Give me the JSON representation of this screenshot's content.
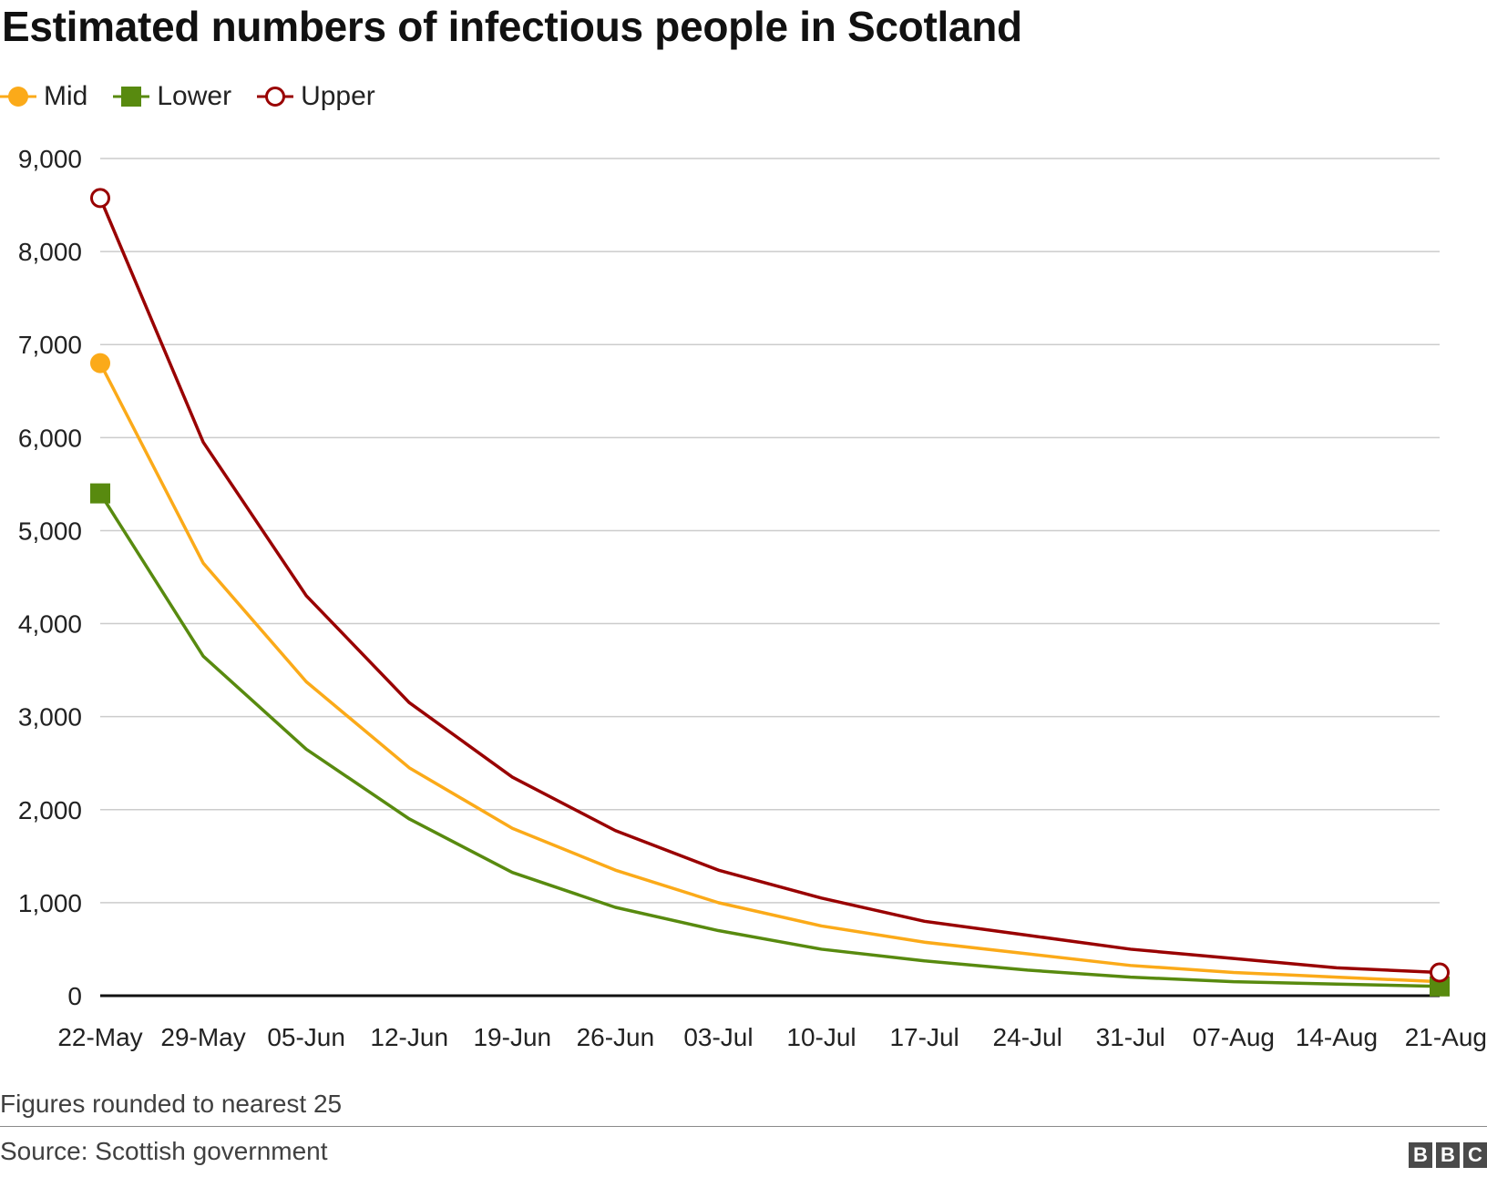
{
  "chart_data": {
    "type": "line",
    "title": "Estimated numbers of infectious people in Scotland",
    "xlabel": "",
    "ylabel": "",
    "categories": [
      "22-May",
      "29-May",
      "05-Jun",
      "12-Jun",
      "19-Jun",
      "26-Jun",
      "03-Jul",
      "10-Jul",
      "17-Jul",
      "24-Jul",
      "31-Jul",
      "07-Aug",
      "14-Aug",
      "21-Aug"
    ],
    "ylim": [
      0,
      9000
    ],
    "yticks": [
      0,
      1000,
      2000,
      3000,
      4000,
      5000,
      6000,
      7000,
      8000,
      9000
    ],
    "ytick_labels": [
      "0",
      "1,000",
      "2,000",
      "3,000",
      "4,000",
      "5,000",
      "6,000",
      "7,000",
      "8,000",
      "9,000"
    ],
    "grid": true,
    "legend": "top-left",
    "series": [
      {
        "name": "Mid",
        "color": "#fbaa19",
        "marker": "circle",
        "values": [
          6800,
          4650,
          3375,
          2450,
          1800,
          1350,
          1000,
          750,
          575,
          450,
          325,
          250,
          200,
          150
        ]
      },
      {
        "name": "Lower",
        "color": "#588a0f",
        "marker": "square",
        "values": [
          5400,
          3650,
          2650,
          1900,
          1325,
          950,
          700,
          500,
          375,
          275,
          200,
          150,
          125,
          100
        ]
      },
      {
        "name": "Upper",
        "color": "#990000",
        "marker": "open-circle",
        "values": [
          8575,
          5950,
          4300,
          3150,
          2350,
          1775,
          1350,
          1050,
          800,
          650,
          500,
          400,
          300,
          250
        ]
      }
    ]
  },
  "footer": {
    "note": "Figures rounded to nearest 25",
    "source": "Source: Scottish government",
    "logo_letters": [
      "B",
      "B",
      "C"
    ]
  }
}
